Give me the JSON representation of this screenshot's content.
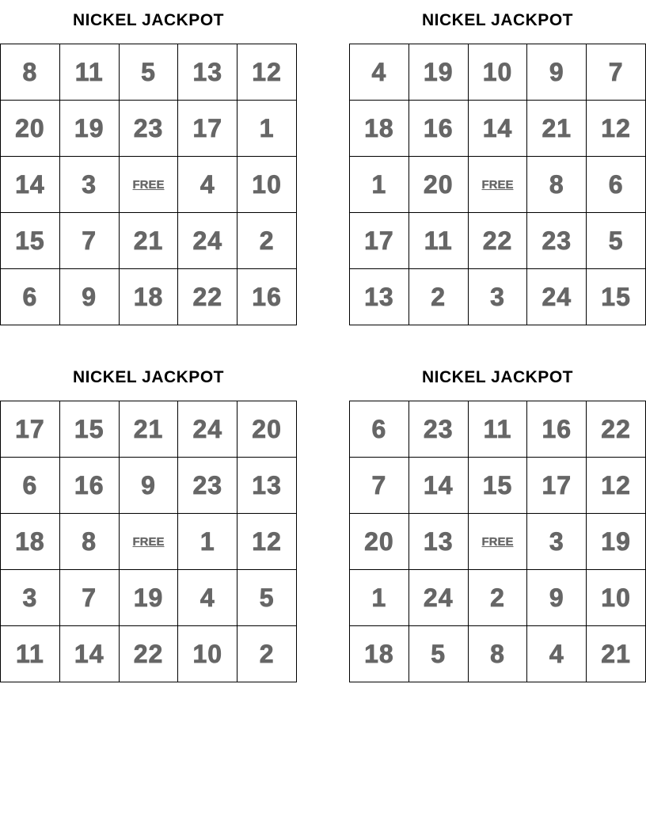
{
  "free_label": "FREE",
  "cards": [
    {
      "title": "NICKEL JACKPOT",
      "rows": [
        [
          "8",
          "11",
          "5",
          "13",
          "12"
        ],
        [
          "20",
          "19",
          "23",
          "17",
          "1"
        ],
        [
          "14",
          "3",
          "FREE",
          "4",
          "10"
        ],
        [
          "15",
          "7",
          "21",
          "24",
          "2"
        ],
        [
          "6",
          "9",
          "18",
          "22",
          "16"
        ]
      ]
    },
    {
      "title": "NICKEL JACKPOT",
      "rows": [
        [
          "4",
          "19",
          "10",
          "9",
          "7"
        ],
        [
          "18",
          "16",
          "14",
          "21",
          "12"
        ],
        [
          "1",
          "20",
          "FREE",
          "8",
          "6"
        ],
        [
          "17",
          "11",
          "22",
          "23",
          "5"
        ],
        [
          "13",
          "2",
          "3",
          "24",
          "15"
        ]
      ]
    },
    {
      "title": "NICKEL JACKPOT",
      "rows": [
        [
          "17",
          "15",
          "21",
          "24",
          "20"
        ],
        [
          "6",
          "16",
          "9",
          "23",
          "13"
        ],
        [
          "18",
          "8",
          "FREE",
          "1",
          "12"
        ],
        [
          "3",
          "7",
          "19",
          "4",
          "5"
        ],
        [
          "11",
          "14",
          "22",
          "10",
          "2"
        ]
      ]
    },
    {
      "title": "NICKEL JACKPOT",
      "rows": [
        [
          "6",
          "23",
          "11",
          "16",
          "22"
        ],
        [
          "7",
          "14",
          "15",
          "17",
          "12"
        ],
        [
          "20",
          "13",
          "FREE",
          "3",
          "19"
        ],
        [
          "1",
          "24",
          "2",
          "9",
          "10"
        ],
        [
          "18",
          "5",
          "8",
          "4",
          "21"
        ]
      ]
    }
  ]
}
